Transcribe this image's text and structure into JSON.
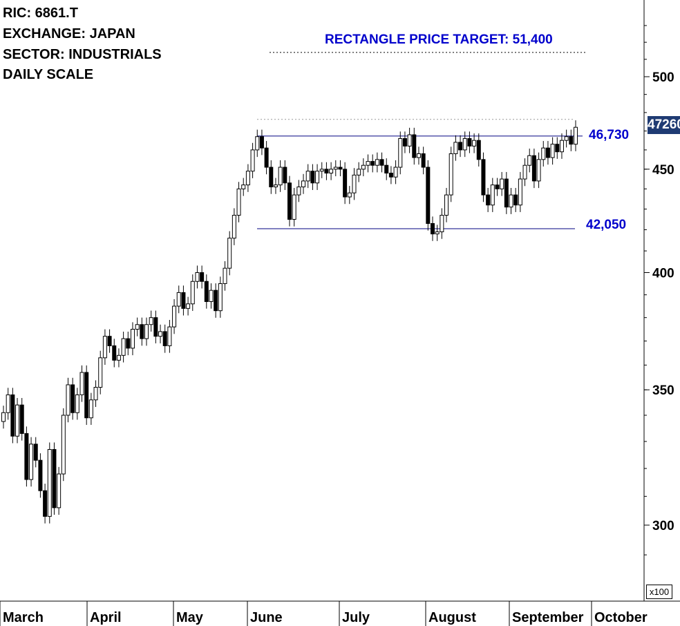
{
  "header": {
    "ric": "RIC: 6861.T",
    "exchange": "EXCHANGE: JAPAN",
    "sector": "SECTOR: INDUSTRIALS",
    "scale": "DAILY SCALE"
  },
  "annotations": {
    "target_label": "RECTANGLE PRICE TARGET: 51,400",
    "resistance_label": "46,730",
    "support_label": "42,050",
    "last_price_label": "47260",
    "multiplier_label": "x100"
  },
  "colors": {
    "annotation": "#0000cc",
    "price_box": "#1f3b73",
    "up_candle": "#ffffff",
    "down_candle": "#000000"
  },
  "chart_data": {
    "type": "candlestick",
    "yscale": "log",
    "ylim": [
      280,
      540
    ],
    "yticks": [
      300,
      350,
      400,
      450,
      500
    ],
    "months": [
      "March",
      "April",
      "May",
      "June",
      "July",
      "August",
      "September",
      "October"
    ],
    "levels": {
      "resistance": 467.3,
      "support": 420.5,
      "target": 514,
      "last": 472.6
    },
    "closes": [
      341,
      348,
      332,
      344,
      333,
      316,
      329,
      323,
      312,
      303,
      327,
      306,
      318,
      340,
      352,
      341,
      348,
      357,
      339,
      346,
      351,
      363,
      372,
      368,
      362,
      364,
      371,
      367,
      375,
      377,
      371,
      377,
      380,
      372,
      374,
      368,
      376,
      385,
      391,
      384,
      386,
      396,
      400,
      396,
      387,
      392,
      383,
      395,
      402,
      416,
      427,
      440,
      442,
      449,
      460,
      467,
      461,
      451,
      441,
      442,
      451,
      443,
      425,
      437,
      441,
      444,
      449,
      443,
      449,
      450,
      448,
      450,
      451,
      450,
      436,
      438,
      447,
      450,
      452,
      454,
      452,
      455,
      452,
      448,
      446,
      451,
      466,
      462,
      468,
      456,
      458,
      451,
      423,
      418,
      419,
      427,
      437,
      458,
      464,
      460,
      466,
      462,
      465,
      455,
      437,
      432,
      442,
      440,
      445,
      431,
      437,
      432,
      445,
      452,
      457,
      444,
      455,
      461,
      456,
      463,
      459,
      465,
      467,
      463,
      472
    ]
  }
}
